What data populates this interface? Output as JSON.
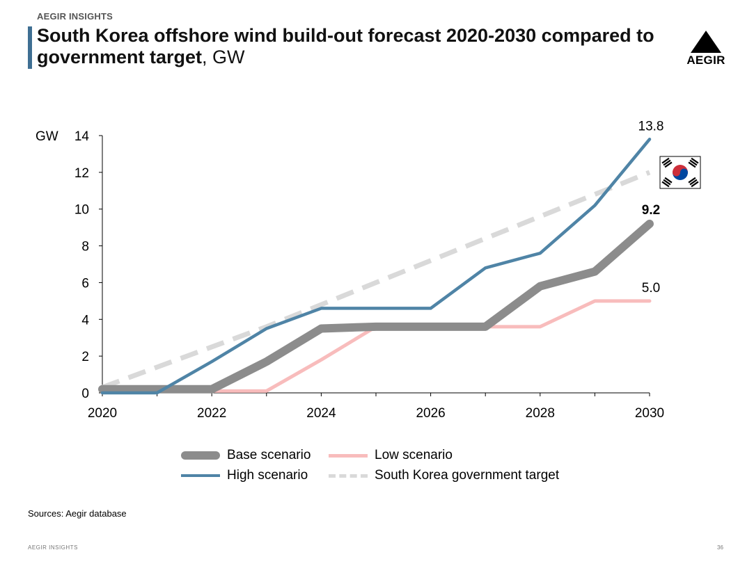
{
  "header": {
    "brand": "AEGIR INSIGHTS",
    "title_bold": "South Korea offshore wind build-out forecast 2020-2030 compared to government target",
    "title_unit": ", GW",
    "logo_text": "AEGIR"
  },
  "chart_data": {
    "type": "line",
    "ylabel": "GW",
    "ylim": [
      0,
      14
    ],
    "yticks": [
      0,
      2,
      4,
      6,
      8,
      10,
      12,
      14
    ],
    "xlim": [
      2020,
      2030
    ],
    "xticks": [
      2020,
      2022,
      2024,
      2026,
      2028,
      2030
    ],
    "x": [
      2020,
      2021,
      2022,
      2023,
      2024,
      2025,
      2026,
      2027,
      2028,
      2029,
      2030
    ],
    "series": [
      {
        "name": "Government target",
        "label": "South Korea government target",
        "color": "#d9d9d9",
        "style": "dashed",
        "values": [
          0.3,
          1.4,
          2.5,
          3.6,
          4.8,
          6.0,
          7.2,
          8.4,
          9.6,
          10.8,
          12.0
        ]
      },
      {
        "name": "Low scenario",
        "label": "Low scenario",
        "color": "#f8bcbc",
        "style": "solid",
        "values": [
          0.1,
          0.1,
          0.1,
          0.1,
          1.8,
          3.6,
          3.6,
          3.6,
          3.6,
          5.0,
          5.0
        ]
      },
      {
        "name": "Base scenario",
        "label": "Base scenario",
        "color": "#8c8c8c",
        "style": "solid-thick",
        "values": [
          0.2,
          0.2,
          0.2,
          1.7,
          3.5,
          3.6,
          3.6,
          3.6,
          5.8,
          6.6,
          9.2
        ]
      },
      {
        "name": "High scenario",
        "label": "High scenario",
        "color": "#4f84a6",
        "style": "solid",
        "values": [
          0.0,
          0.0,
          1.7,
          3.5,
          4.6,
          4.6,
          4.6,
          6.8,
          7.6,
          10.2,
          13.8
        ]
      }
    ],
    "end_labels": [
      {
        "series": "High scenario",
        "text": "13.8",
        "bold": false
      },
      {
        "series": "Base scenario",
        "text": "9.2",
        "bold": true
      },
      {
        "series": "Low scenario",
        "text": "5.0",
        "bold": false
      }
    ],
    "annotation_icon": "south-korea-flag-icon",
    "legend": {
      "position": "bottom",
      "items": [
        {
          "label": "Base scenario",
          "color": "#8c8c8c",
          "style": "solid-thick"
        },
        {
          "label": "Low scenario",
          "color": "#f8bcbc",
          "style": "solid"
        },
        {
          "label": "High scenario",
          "color": "#4f84a6",
          "style": "solid"
        },
        {
          "label": "South Korea government target",
          "color": "#d9d9d9",
          "style": "dashed"
        }
      ]
    }
  },
  "footer": {
    "source": "Sources: Aegir database",
    "brand": "AEGIR INSIGHTS",
    "page_number": "36"
  }
}
